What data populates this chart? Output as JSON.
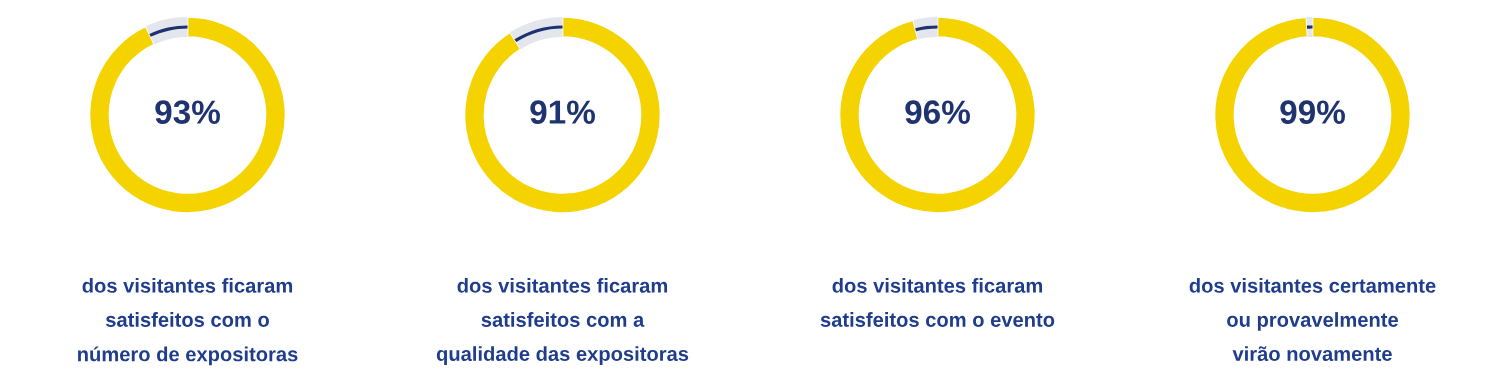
{
  "chart_data": [
    {
      "type": "donut",
      "categories": [
        null,
        null
      ],
      "values": [
        93,
        7
      ],
      "colors": [
        "#f5d300",
        "#1f3370"
      ],
      "value_labels": [
        "93%",
        null
      ],
      "annotations": [
        "dos visitantes ficaram\nsatisfeitos com o\nnúmero de expositoras"
      ]
    },
    {
      "type": "donut",
      "categories": [
        null,
        null
      ],
      "values": [
        91,
        9
      ],
      "colors": [
        "#f5d300",
        "#1f3370"
      ],
      "value_labels": [
        "91%",
        null
      ],
      "annotations": [
        "dos visitantes ficaram\nsatisfeitos com a\nqualidade das expositoras"
      ]
    },
    {
      "type": "donut",
      "categories": [
        null,
        null
      ],
      "values": [
        96,
        4
      ],
      "colors": [
        "#f5d300",
        "#1f3370"
      ],
      "value_labels": [
        "96%",
        null
      ],
      "annotations": [
        "dos visitantes ficaram\nsatisfeitos com o evento"
      ]
    },
    {
      "type": "donut",
      "categories": [
        null,
        null
      ],
      "values": [
        99,
        1
      ],
      "colors": [
        "#f5d300",
        "#1f3370"
      ],
      "value_labels": [
        "99%",
        null
      ],
      "annotations": [
        "dos visitantes certamente\nou provavelmente\nvirão novamente"
      ]
    }
  ]
}
